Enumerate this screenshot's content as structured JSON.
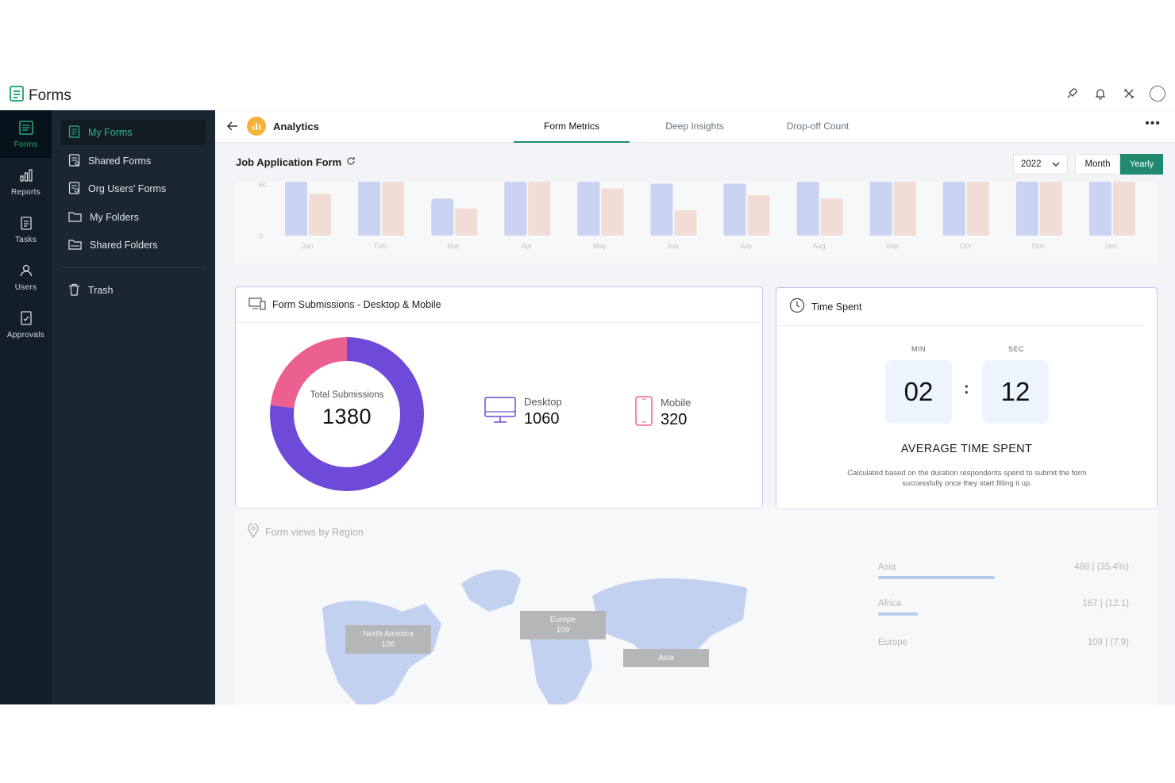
{
  "app": {
    "title": "Forms",
    "top_icons": [
      "rocket-icon",
      "bell-icon",
      "tools-icon",
      "avatar-icon"
    ]
  },
  "rail": [
    {
      "label": "Forms",
      "icon": "forms-icon",
      "active": true
    },
    {
      "label": "Reports",
      "icon": "bar-chart-icon"
    },
    {
      "label": "Tasks",
      "icon": "clipboard-icon"
    },
    {
      "label": "Users",
      "icon": "user-icon"
    },
    {
      "label": "Approvals",
      "icon": "approval-icon"
    }
  ],
  "nav": [
    {
      "label": "My Forms",
      "icon": "form-doc-icon",
      "active": true
    },
    {
      "label": "Shared Forms",
      "icon": "shared-form-icon"
    },
    {
      "label": "Org Users' Forms",
      "icon": "org-form-icon"
    },
    {
      "label": "My Folders",
      "icon": "folder-icon"
    },
    {
      "label": "Shared Folders",
      "icon": "shared-folder-icon"
    },
    {
      "label": "Trash",
      "icon": "trash-icon"
    }
  ],
  "header": {
    "section": "Analytics",
    "tabs": [
      {
        "label": "Form Metrics",
        "active": true
      },
      {
        "label": "Deep Insights"
      },
      {
        "label": "Drop-off Count"
      }
    ],
    "more": "•••"
  },
  "toolbar": {
    "form_name": "Job Application Form",
    "year": "2022",
    "month_label": "Month",
    "yearly_label": "Yearly"
  },
  "chart_data": {
    "type": "bar",
    "categories": [
      "Jan",
      "Feb",
      "Mar",
      "Apr",
      "May",
      "Jun",
      "July",
      "Aug",
      "Sep",
      "Oct",
      "Nov",
      "Dec"
    ],
    "series": [
      {
        "values": [
          80,
          80,
          55,
          80,
          80,
          77,
          77,
          80,
          80,
          80,
          80,
          80
        ]
      },
      {
        "values": [
          62,
          80,
          40,
          80,
          70,
          38,
          60,
          55,
          80,
          80,
          80,
          80
        ]
      }
    ],
    "y_ticks": [
      "60",
      "0"
    ],
    "colors": [
      "#9aacec",
      "#f1c3ad"
    ]
  },
  "submissions": {
    "title": "Form Submissions - Desktop & Mobile",
    "total_label": "Total Submissions",
    "total": "1380",
    "desktop_label": "Desktop",
    "desktop": "1060",
    "mobile_label": "Mobile",
    "mobile": "320",
    "donut": {
      "desktop": 1060,
      "mobile": 320,
      "desktop_color": "#6f4ad8",
      "mobile_color": "#ec5f91"
    }
  },
  "time_spent": {
    "title": "Time Spent",
    "min_label": "MIN",
    "sec_label": "SEC",
    "min": "02",
    "sec": "12",
    "separator": ":",
    "avg_title": "AVERAGE TIME SPENT",
    "description": "Calculated based on the duration respondents spend to submit the form successfully once they start filling it up."
  },
  "regions": {
    "title": "Form views by Region",
    "map_tags": [
      {
        "name": "North America",
        "value": "106"
      },
      {
        "name": "Europe",
        "value": "109"
      },
      {
        "name": "Asia",
        "value": ""
      }
    ],
    "list": [
      {
        "name": "Asia",
        "value": "488",
        "pct": "(35.4%)",
        "share": 0.354
      },
      {
        "name": "Africa",
        "value": "167",
        "pct": "(12.1)",
        "share": 0.121
      },
      {
        "name": "Europe",
        "value": "109",
        "pct": "(7.9)",
        "share": 0.079
      }
    ]
  }
}
